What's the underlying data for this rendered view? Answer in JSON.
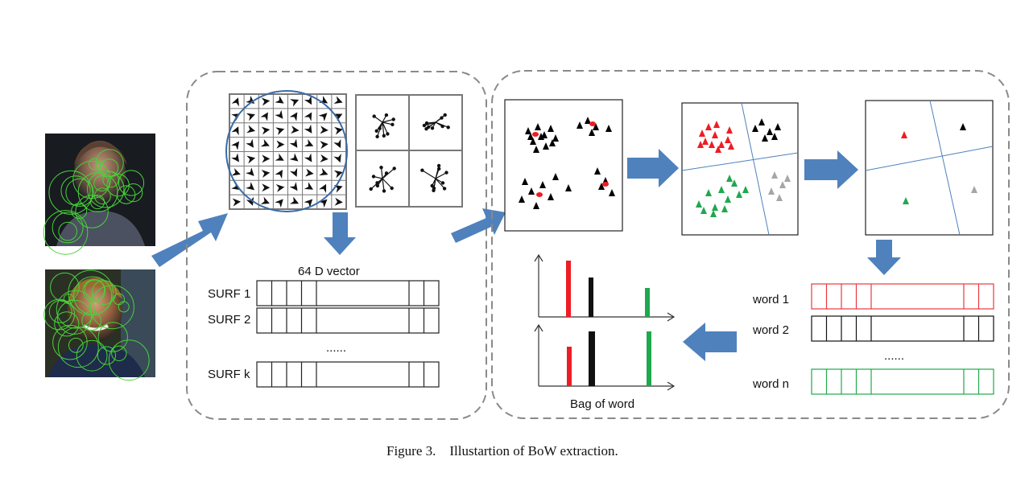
{
  "left_panel": {
    "vector_label": "64 D vector",
    "rows": [
      "SURF 1",
      "SURF 2",
      "SURF k"
    ],
    "ellipsis": "......"
  },
  "right_panel": {
    "words": [
      {
        "label": "word 1",
        "color": "#e8393d"
      },
      {
        "label": "word 2",
        "color": "#111111"
      },
      {
        "label": "word n",
        "color": "#1faa4a"
      }
    ],
    "ellipsis": "......",
    "histogram_label": "Bag of word"
  },
  "caption": "Figure 3.    Illustartion of BoW extraction.",
  "colors": {
    "arrow": "#4f81bd",
    "circle": "#3b6aa8",
    "red": "#ee1c24",
    "green": "#1fa84e",
    "gray": "#a6a6a6",
    "dashed_border": "#8a8a8a"
  }
}
